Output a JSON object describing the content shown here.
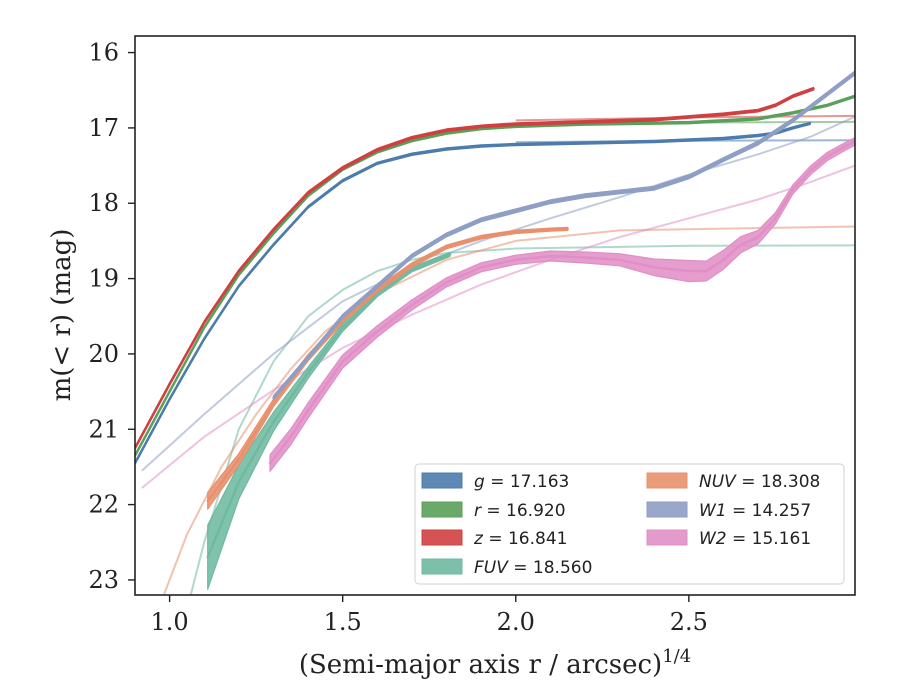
{
  "chart_data": {
    "type": "line",
    "xlabel": "(Semi-major axis r / arcsec)",
    "xlabel_sup": "1/4",
    "ylabel": "m(< r) (mag)",
    "xlim": [
      0.9,
      2.98
    ],
    "ylim": [
      23.2,
      15.78
    ],
    "y_inverted": true,
    "x_ticks": [
      1.0,
      1.5,
      2.0,
      2.5
    ],
    "x_tick_labels": [
      "1.0",
      "1.5",
      "2.0",
      "2.5"
    ],
    "y_ticks": [
      16,
      17,
      18,
      19,
      20,
      21,
      22,
      23
    ],
    "y_tick_labels": [
      "16",
      "17",
      "18",
      "19",
      "20",
      "21",
      "22",
      "23"
    ],
    "grid": false,
    "legend_position": "lower-right",
    "series": [
      {
        "name": "g = 17.163",
        "var": "g",
        "mag": "17.163",
        "color": "#4c7cac",
        "data": [
          [
            0.9,
            21.45
          ],
          [
            1.0,
            20.6
          ],
          [
            1.1,
            19.8
          ],
          [
            1.2,
            19.1
          ],
          [
            1.3,
            18.55
          ],
          [
            1.4,
            18.05
          ],
          [
            1.5,
            17.7
          ],
          [
            1.6,
            17.47
          ],
          [
            1.7,
            17.35
          ],
          [
            1.8,
            17.28
          ],
          [
            1.9,
            17.24
          ],
          [
            2.0,
            17.22
          ],
          [
            2.2,
            17.2
          ],
          [
            2.4,
            17.18
          ],
          [
            2.6,
            17.14
          ],
          [
            2.7,
            17.1
          ],
          [
            2.75,
            17.07
          ],
          [
            2.8,
            17.0
          ],
          [
            2.85,
            16.94
          ]
        ],
        "width": [
          [
            0.9,
            0.03
          ],
          [
            2.85,
            0.03
          ]
        ],
        "model": [
          [
            2.0,
            17.19
          ],
          [
            2.5,
            17.17
          ],
          [
            2.98,
            17.163
          ]
        ]
      },
      {
        "name": "r = 16.920",
        "var": "r",
        "mag": "16.920",
        "color": "#5aa05a",
        "data": [
          [
            0.9,
            21.35
          ],
          [
            1.0,
            20.5
          ],
          [
            1.1,
            19.65
          ],
          [
            1.2,
            18.95
          ],
          [
            1.3,
            18.4
          ],
          [
            1.4,
            17.9
          ],
          [
            1.5,
            17.55
          ],
          [
            1.6,
            17.32
          ],
          [
            1.7,
            17.17
          ],
          [
            1.8,
            17.07
          ],
          [
            1.9,
            17.01
          ],
          [
            2.0,
            16.98
          ],
          [
            2.2,
            16.95
          ],
          [
            2.5,
            16.93
          ],
          [
            2.7,
            16.88
          ],
          [
            2.8,
            16.8
          ],
          [
            2.9,
            16.7
          ],
          [
            2.98,
            16.58
          ]
        ],
        "width": [
          [
            0.9,
            0.03
          ],
          [
            2.98,
            0.03
          ]
        ],
        "model": [
          [
            2.0,
            16.95
          ],
          [
            2.5,
            16.93
          ],
          [
            2.98,
            16.92
          ]
        ]
      },
      {
        "name": "z = 16.841",
        "var": "z",
        "mag": "16.841",
        "color": "#d04040",
        "data": [
          [
            0.9,
            21.25
          ],
          [
            1.0,
            20.4
          ],
          [
            1.1,
            19.58
          ],
          [
            1.2,
            18.9
          ],
          [
            1.3,
            18.35
          ],
          [
            1.4,
            17.86
          ],
          [
            1.5,
            17.53
          ],
          [
            1.6,
            17.29
          ],
          [
            1.7,
            17.13
          ],
          [
            1.8,
            17.03
          ],
          [
            1.9,
            16.98
          ],
          [
            2.0,
            16.95
          ],
          [
            2.2,
            16.92
          ],
          [
            2.4,
            16.89
          ],
          [
            2.6,
            16.82
          ],
          [
            2.7,
            16.77
          ],
          [
            2.75,
            16.7
          ],
          [
            2.8,
            16.58
          ],
          [
            2.86,
            16.48
          ]
        ],
        "width": [
          [
            0.9,
            0.035
          ],
          [
            2.86,
            0.035
          ]
        ],
        "model": [
          [
            2.0,
            16.9
          ],
          [
            2.5,
            16.86
          ],
          [
            2.98,
            16.841
          ]
        ]
      },
      {
        "name": "FUV = 18.560",
        "var": "FUV",
        "mag": "18.560",
        "color": "#6fb9a0",
        "data": [
          [
            1.11,
            22.7
          ],
          [
            1.2,
            21.7
          ],
          [
            1.3,
            20.9
          ],
          [
            1.4,
            20.25
          ],
          [
            1.5,
            19.65
          ],
          [
            1.6,
            19.2
          ],
          [
            1.7,
            18.88
          ],
          [
            1.81,
            18.68
          ]
        ],
        "width": [
          [
            1.11,
            0.85
          ],
          [
            1.2,
            0.45
          ],
          [
            1.3,
            0.25
          ],
          [
            1.4,
            0.15
          ],
          [
            1.5,
            0.1
          ],
          [
            1.6,
            0.08
          ],
          [
            1.7,
            0.06
          ],
          [
            1.81,
            0.05
          ]
        ],
        "model": [
          [
            1.0,
            24.3
          ],
          [
            1.1,
            22.5
          ],
          [
            1.2,
            21.0
          ],
          [
            1.3,
            20.1
          ],
          [
            1.4,
            19.5
          ],
          [
            1.5,
            19.15
          ],
          [
            1.6,
            18.9
          ],
          [
            1.7,
            18.75
          ],
          [
            1.8,
            18.66
          ],
          [
            2.0,
            18.6
          ],
          [
            2.5,
            18.565
          ],
          [
            2.98,
            18.56
          ]
        ]
      },
      {
        "name": "NUV = 18.308",
        "var": "NUV",
        "mag": "18.308",
        "color": "#e8906c",
        "data": [
          [
            1.11,
            21.95
          ],
          [
            1.2,
            21.4
          ],
          [
            1.3,
            20.65
          ],
          [
            1.4,
            20.05
          ],
          [
            1.5,
            19.55
          ],
          [
            1.6,
            19.15
          ],
          [
            1.7,
            18.82
          ],
          [
            1.8,
            18.58
          ],
          [
            1.9,
            18.45
          ],
          [
            2.0,
            18.38
          ],
          [
            2.1,
            18.35
          ],
          [
            2.15,
            18.34
          ]
        ],
        "width": [
          [
            1.11,
            0.22
          ],
          [
            1.2,
            0.15
          ],
          [
            1.3,
            0.1
          ],
          [
            1.5,
            0.07
          ],
          [
            1.8,
            0.05
          ],
          [
            2.15,
            0.04
          ]
        ],
        "model": [
          [
            0.95,
            23.6
          ],
          [
            1.05,
            22.4
          ],
          [
            1.15,
            21.5
          ],
          [
            1.25,
            20.8
          ],
          [
            1.35,
            20.2
          ],
          [
            1.45,
            19.7
          ],
          [
            1.6,
            19.2
          ],
          [
            1.8,
            18.75
          ],
          [
            2.0,
            18.5
          ],
          [
            2.3,
            18.36
          ],
          [
            2.98,
            18.308
          ]
        ]
      },
      {
        "name": "W1 = 14.257",
        "var": "W1",
        "mag": "14.257",
        "color": "#8e9ec4",
        "data": [
          [
            1.3,
            20.58
          ],
          [
            1.4,
            20.05
          ],
          [
            1.5,
            19.5
          ],
          [
            1.6,
            19.1
          ],
          [
            1.7,
            18.7
          ],
          [
            1.8,
            18.42
          ],
          [
            1.9,
            18.22
          ],
          [
            2.0,
            18.1
          ],
          [
            2.1,
            17.98
          ],
          [
            2.2,
            17.9
          ],
          [
            2.3,
            17.85
          ],
          [
            2.4,
            17.8
          ],
          [
            2.5,
            17.65
          ],
          [
            2.6,
            17.42
          ],
          [
            2.7,
            17.2
          ],
          [
            2.8,
            16.9
          ],
          [
            2.9,
            16.55
          ],
          [
            2.98,
            16.27
          ]
        ],
        "width": [
          [
            1.3,
            0.05
          ],
          [
            2.98,
            0.05
          ]
        ],
        "model": [
          [
            0.92,
            21.55
          ],
          [
            1.1,
            20.8
          ],
          [
            1.3,
            20.0
          ],
          [
            1.5,
            19.3
          ],
          [
            1.7,
            18.85
          ],
          [
            1.9,
            18.5
          ],
          [
            2.1,
            18.2
          ],
          [
            2.3,
            17.92
          ],
          [
            2.5,
            17.62
          ],
          [
            2.7,
            17.35
          ],
          [
            2.85,
            17.12
          ],
          [
            2.98,
            16.85
          ]
        ]
      },
      {
        "name": "W2 = 15.161",
        "var": "W2",
        "mag": "15.161",
        "color": "#e08fc6",
        "data": [
          [
            1.29,
            21.45
          ],
          [
            1.35,
            21.1
          ],
          [
            1.4,
            20.75
          ],
          [
            1.5,
            20.1
          ],
          [
            1.6,
            19.7
          ],
          [
            1.7,
            19.35
          ],
          [
            1.8,
            19.05
          ],
          [
            1.9,
            18.85
          ],
          [
            2.0,
            18.75
          ],
          [
            2.1,
            18.7
          ],
          [
            2.2,
            18.72
          ],
          [
            2.3,
            18.75
          ],
          [
            2.4,
            18.85
          ],
          [
            2.5,
            18.9
          ],
          [
            2.55,
            18.9
          ],
          [
            2.6,
            18.75
          ],
          [
            2.65,
            18.55
          ],
          [
            2.7,
            18.45
          ],
          [
            2.75,
            18.2
          ],
          [
            2.8,
            17.82
          ],
          [
            2.85,
            17.57
          ],
          [
            2.9,
            17.38
          ],
          [
            2.95,
            17.25
          ],
          [
            2.98,
            17.18
          ]
        ],
        "width": [
          [
            1.29,
            0.22
          ],
          [
            1.4,
            0.2
          ],
          [
            1.6,
            0.15
          ],
          [
            1.8,
            0.12
          ],
          [
            2.0,
            0.12
          ],
          [
            2.3,
            0.16
          ],
          [
            2.5,
            0.28
          ],
          [
            2.6,
            0.25
          ],
          [
            2.7,
            0.18
          ],
          [
            2.8,
            0.12
          ],
          [
            2.98,
            0.1
          ]
        ],
        "model": [
          [
            0.92,
            21.78
          ],
          [
            1.1,
            21.1
          ],
          [
            1.3,
            20.48
          ],
          [
            1.5,
            19.92
          ],
          [
            1.7,
            19.48
          ],
          [
            1.9,
            19.08
          ],
          [
            2.1,
            18.75
          ],
          [
            2.3,
            18.45
          ],
          [
            2.5,
            18.2
          ],
          [
            2.7,
            17.95
          ],
          [
            2.85,
            17.72
          ],
          [
            2.98,
            17.5
          ]
        ]
      }
    ],
    "legend_columns": [
      [
        "g",
        "r",
        "z",
        "FUV"
      ],
      [
        "NUV",
        "W1",
        "W2"
      ]
    ]
  }
}
